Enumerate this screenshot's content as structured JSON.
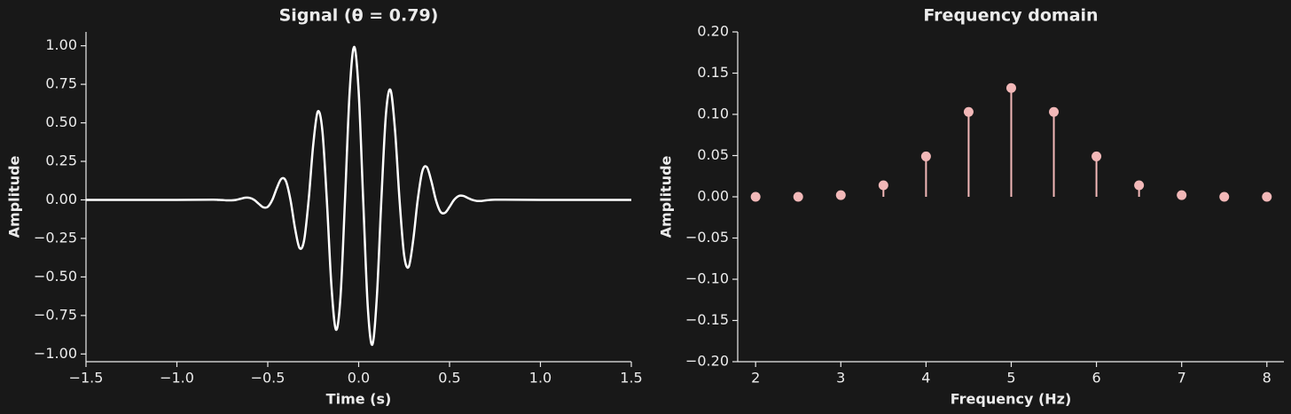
{
  "chart_data": [
    {
      "type": "line",
      "title": "Signal (θ = 0.79)",
      "xlabel": "Time (s)",
      "ylabel": "Amplitude",
      "color": "#ffffff",
      "x": [
        -1.5,
        -1.0,
        -0.8,
        -0.775,
        -0.75,
        -0.725,
        -0.7,
        -0.675,
        -0.65,
        -0.625,
        -0.6,
        -0.575,
        -0.55,
        -0.525,
        -0.5,
        -0.475,
        -0.45,
        -0.425,
        -0.4,
        -0.375,
        -0.35,
        -0.325,
        -0.3,
        -0.275,
        -0.25,
        -0.225,
        -0.2,
        -0.175,
        -0.15,
        -0.125,
        -0.1,
        -0.075,
        -0.05,
        -0.025,
        0,
        0.025,
        0.05,
        0.075,
        0.1,
        0.125,
        0.15,
        0.175,
        0.2,
        0.225,
        0.25,
        0.275,
        0.3,
        0.325,
        0.35,
        0.375,
        0.4,
        0.425,
        0.45,
        0.475,
        0.5,
        0.525,
        0.55,
        0.575,
        0.6,
        0.625,
        0.65,
        0.675,
        0.7,
        0.725,
        0.75,
        0.775,
        0.8,
        1.0,
        1.5
      ],
      "values": [
        0,
        0,
        0.001,
        0,
        -0.001,
        -0.003,
        -0.003,
        0,
        0.007,
        0.014,
        0.013,
        0,
        -0.025,
        -0.048,
        -0.045,
        0,
        0.077,
        0.137,
        0.121,
        -0.001,
        -0.185,
        -0.313,
        -0.262,
        0.002,
        0.357,
        0.573,
        0.453,
        -0.003,
        -0.555,
        -0.842,
        -0.631,
        0.004,
        0.691,
        0.993,
        0.704,
        -0.004,
        -0.691,
        -0.94,
        -0.631,
        0.003,
        0.555,
        0.714,
        0.453,
        -0.002,
        -0.357,
        -0.435,
        -0.262,
        0.001,
        0.185,
        0.213,
        0.121,
        -0.001,
        -0.077,
        -0.084,
        -0.045,
        0,
        0.025,
        0.026,
        0.013,
        0,
        -0.007,
        -0.007,
        -0.003,
        0,
        0.001,
        0.001,
        0.001,
        0,
        0
      ],
      "xlim": [
        -1.5,
        1.5
      ],
      "ylim": [
        -1.05,
        1.09
      ],
      "xticks": [
        {
          "value": -1.5,
          "label": "−1.5"
        },
        {
          "value": -1.0,
          "label": "−1.0"
        },
        {
          "value": -0.5,
          "label": "−0.5"
        },
        {
          "value": 0.0,
          "label": "0.0"
        },
        {
          "value": 0.5,
          "label": "0.5"
        },
        {
          "value": 1.0,
          "label": "1.0"
        },
        {
          "value": 1.5,
          "label": "1.5"
        }
      ],
      "yticks": [
        {
          "value": -1.0,
          "label": "−1.00"
        },
        {
          "value": -0.75,
          "label": "−0.75"
        },
        {
          "value": -0.5,
          "label": "−0.50"
        },
        {
          "value": -0.25,
          "label": "−0.25"
        },
        {
          "value": 0.0,
          "label": "0.00"
        },
        {
          "value": 0.25,
          "label": "0.25"
        },
        {
          "value": 0.5,
          "label": "0.50"
        },
        {
          "value": 0.75,
          "label": "0.75"
        },
        {
          "value": 1.0,
          "label": "1.00"
        }
      ]
    },
    {
      "type": "stem",
      "title": "Frequency domain",
      "xlabel": "Frequency (Hz)",
      "ylabel": "Amplitude",
      "color": "#f2b8b8",
      "x": [
        2,
        2.5,
        3,
        3.5,
        4,
        4.5,
        5,
        5.5,
        6,
        6.5,
        7,
        7.5,
        8
      ],
      "values": [
        0,
        0,
        0.002,
        0.014,
        0.049,
        0.103,
        0.132,
        0.103,
        0.049,
        0.014,
        0.002,
        0,
        0
      ],
      "xlim": [
        1.79,
        8.2
      ],
      "ylim": [
        -0.2,
        0.2
      ],
      "xticks": [
        2,
        3,
        4,
        5,
        6,
        7,
        8
      ],
      "yticks": [
        {
          "value": -0.2,
          "label": "−0.20"
        },
        {
          "value": -0.15,
          "label": "−0.15"
        },
        {
          "value": -0.1,
          "label": "−0.10"
        },
        {
          "value": -0.05,
          "label": "−0.05"
        },
        {
          "value": 0.0,
          "label": "0.00"
        },
        {
          "value": 0.05,
          "label": "0.05"
        },
        {
          "value": 0.1,
          "label": "0.10"
        },
        {
          "value": 0.15,
          "label": "0.15"
        },
        {
          "value": 0.2,
          "label": "0.20"
        }
      ]
    }
  ]
}
